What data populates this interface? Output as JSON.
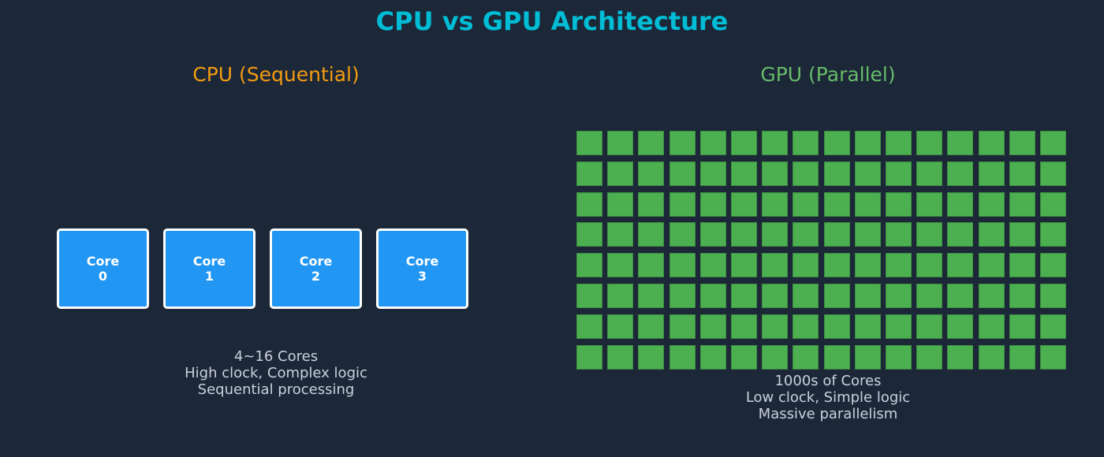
{
  "title": "CPU vs GPU Architecture",
  "cpu": {
    "title": "CPU (Sequential)",
    "cores": [
      {
        "label": "Core",
        "index": "0"
      },
      {
        "label": "Core",
        "index": "1"
      },
      {
        "label": "Core",
        "index": "2"
      },
      {
        "label": "Core",
        "index": "3"
      }
    ],
    "caption": [
      "4~16 Cores",
      "High clock, Complex logic",
      "Sequential processing"
    ],
    "core_color": "#2196f3",
    "title_color": "#f39c12"
  },
  "gpu": {
    "title": "GPU (Parallel)",
    "grid": {
      "rows": 8,
      "cols": 16
    },
    "caption": [
      "1000s of Cores",
      "Low clock, Simple logic",
      "Massive parallelism"
    ],
    "core_color": "#4caf50",
    "title_color": "#66bb6a"
  },
  "colors": {
    "background": "#1c2738",
    "title": "#00bcd4",
    "caption": "#c9d1dc"
  }
}
